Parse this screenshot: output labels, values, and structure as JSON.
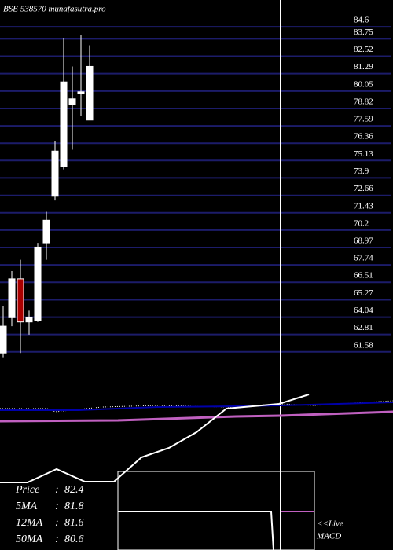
{
  "chart_data": {
    "type": "candlestick",
    "title": "BSE 538570 munafasutra.pro",
    "open": [
      61.5,
      64.0,
      66.75,
      63.7,
      63.8,
      69.3,
      72.6,
      74.7,
      79.1,
      79.9,
      78.0
    ],
    "high": [
      64.8,
      67.3,
      68.1,
      64.5,
      69.3,
      71.5,
      76.5,
      83.8,
      81.8,
      84.0,
      83.3
    ],
    "low": [
      61.2,
      63.4,
      61.5,
      62.8,
      63.7,
      68.1,
      72.3,
      74.5,
      75.9,
      78.3,
      78.0
    ],
    "close": [
      63.4,
      66.75,
      63.7,
      64.0,
      69.0,
      70.9,
      75.8,
      80.7,
      79.5,
      80.0,
      81.8
    ],
    "up_color": "#ffffff",
    "down_color": "#aa0000",
    "grid_color": "#1c1c6a",
    "ylim": [
      60.9,
      86.5
    ],
    "yticks": [
      84.6,
      83.75,
      82.52,
      81.29,
      80.05,
      78.82,
      77.59,
      76.36,
      75.13,
      73.9,
      72.66,
      71.43,
      70.2,
      68.97,
      67.74,
      66.51,
      65.27,
      64.04,
      62.81,
      61.58
    ],
    "grid": true,
    "info": {
      "separator": ":",
      "labels": [
        "Price",
        "5MA",
        "12MA",
        "50MA"
      ],
      "values": [
        82.4,
        81.8,
        81.6,
        80.6
      ]
    },
    "live_label": "<<Live",
    "indicator_label": "MACD"
  }
}
